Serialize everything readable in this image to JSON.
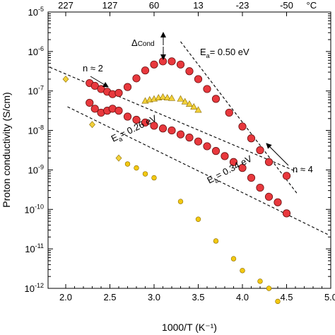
{
  "chart_data": {
    "type": "scatter",
    "title": "",
    "xlabel": "1000/T (K⁻¹)",
    "ylabel": "Proton conductivity (S/cm)",
    "xlim": [
      1.8,
      5.0
    ],
    "ylim_log10": [
      -12,
      -5
    ],
    "yscale": "log",
    "grid": false,
    "legend": "none",
    "x_ticks": [
      "2.0",
      "2.5",
      "3.0",
      "3.5",
      "4.0",
      "4.5",
      "5.0"
    ],
    "x_tick_values": [
      2.0,
      2.5,
      3.0,
      3.5,
      4.0,
      4.5,
      5.0
    ],
    "top_axis_label": "°C",
    "top_ticks": [
      {
        "label": "227",
        "x": 2.0
      },
      {
        "label": "127",
        "x": 2.5
      },
      {
        "label": "60",
        "x": 3.0
      },
      {
        "label": "13",
        "x": 3.5
      },
      {
        "label": "-23",
        "x": 4.0
      },
      {
        "label": "-50",
        "x": 4.5
      }
    ],
    "y_tick_exponents": [
      -5,
      -6,
      -7,
      -8,
      -9,
      -10,
      -11,
      -12
    ],
    "series": [
      {
        "marker": "circle",
        "color": "#e8383d",
        "points": [
          [
            2.27,
            -6.8
          ],
          [
            2.33,
            -6.87
          ],
          [
            2.4,
            -6.95
          ],
          [
            2.47,
            -7.02
          ],
          [
            2.53,
            -7.08
          ],
          [
            2.6,
            -7.05
          ],
          [
            2.7,
            -6.9
          ],
          [
            2.8,
            -6.68
          ],
          [
            2.9,
            -6.48
          ],
          [
            3.0,
            -6.33
          ],
          [
            3.1,
            -6.25
          ],
          [
            3.2,
            -6.25
          ],
          [
            3.3,
            -6.33
          ],
          [
            3.4,
            -6.5
          ],
          [
            3.5,
            -6.7
          ],
          [
            3.6,
            -6.95
          ],
          [
            3.7,
            -7.2
          ],
          [
            3.85,
            -7.55
          ],
          [
            4.0,
            -7.9
          ],
          [
            4.1,
            -8.2
          ],
          [
            4.2,
            -8.5
          ],
          [
            4.3,
            -8.8
          ],
          [
            4.5,
            -9.15
          ]
        ]
      },
      {
        "marker": "circle",
        "color": "#e8383d",
        "points": [
          [
            2.27,
            -7.3
          ],
          [
            2.33,
            -7.45
          ],
          [
            2.4,
            -7.55
          ],
          [
            2.47,
            -7.5
          ],
          [
            2.53,
            -7.45
          ],
          [
            2.6,
            -7.5
          ],
          [
            2.7,
            -7.65
          ],
          [
            2.8,
            -7.73
          ],
          [
            2.9,
            -7.8
          ],
          [
            3.0,
            -7.88
          ],
          [
            3.1,
            -7.95
          ],
          [
            3.2,
            -8.0
          ],
          [
            3.3,
            -8.1
          ],
          [
            3.4,
            -8.18
          ],
          [
            3.5,
            -8.28
          ],
          [
            3.6,
            -8.4
          ],
          [
            3.7,
            -8.52
          ],
          [
            3.8,
            -8.65
          ],
          [
            3.9,
            -8.8
          ],
          [
            4.0,
            -8.95
          ],
          [
            4.1,
            -9.2
          ],
          [
            4.2,
            -9.45
          ],
          [
            4.3,
            -9.68
          ],
          [
            4.4,
            -9.82
          ],
          [
            4.5,
            -10.1
          ]
        ]
      },
      {
        "marker": "triangle",
        "color": "#f2d13a",
        "points": [
          [
            2.9,
            -7.25
          ],
          [
            2.95,
            -7.22
          ],
          [
            3.0,
            -7.2
          ],
          [
            3.05,
            -7.17
          ],
          [
            3.1,
            -7.15
          ],
          [
            3.15,
            -7.17
          ],
          [
            3.2,
            -7.18
          ],
          [
            3.3,
            -7.2
          ],
          [
            3.35,
            -7.27
          ],
          [
            3.4,
            -7.33
          ],
          [
            3.45,
            -7.4
          ],
          [
            3.5,
            -7.48
          ]
        ]
      },
      {
        "marker": "diamond",
        "color": "#f2d13a",
        "points": [
          [
            2.0,
            -6.7
          ],
          [
            2.3,
            -7.85
          ],
          [
            2.6,
            -8.7
          ]
        ]
      },
      {
        "marker": "circle-small",
        "color": "#f2c811",
        "points": [
          [
            2.7,
            -8.85
          ],
          [
            2.8,
            -8.95
          ],
          [
            2.9,
            -9.1
          ],
          [
            3.0,
            -9.2
          ],
          [
            3.3,
            -9.8
          ],
          [
            3.5,
            -10.25
          ],
          [
            3.7,
            -10.8
          ],
          [
            3.9,
            -11.25
          ],
          [
            4.0,
            -11.55
          ],
          [
            4.2,
            -11.82
          ],
          [
            4.3,
            -12.0
          ],
          [
            4.4,
            -12.33
          ]
        ]
      }
    ],
    "fit_lines": [
      {
        "label": "Eₐ= 0.50 eV",
        "from": [
          3.3,
          -5.75
        ],
        "to": [
          4.62,
          -9.6
        ]
      },
      {
        "label": "Eₐ= 0.26 eV",
        "from": [
          1.82,
          -6.4
        ],
        "to": [
          4.62,
          -9.05
        ]
      },
      {
        "label": "Eₐ= 0.34 eV",
        "from": [
          2.02,
          -7.4
        ],
        "to": [
          4.98,
          -10.65
        ]
      }
    ],
    "annotations": [
      {
        "text": "Δ",
        "subtext": "Cond"
      },
      {
        "text": "E",
        "subtext": "a",
        "after": "= 0.50 eV"
      },
      {
        "text": "n ≈ 2"
      },
      {
        "text": "E",
        "subtext": "a",
        "after": "= 0.26 eV"
      },
      {
        "text": "E",
        "subtext": "a",
        "after": "= 0.34 eV"
      },
      {
        "text": "n ≈ 4"
      }
    ]
  }
}
